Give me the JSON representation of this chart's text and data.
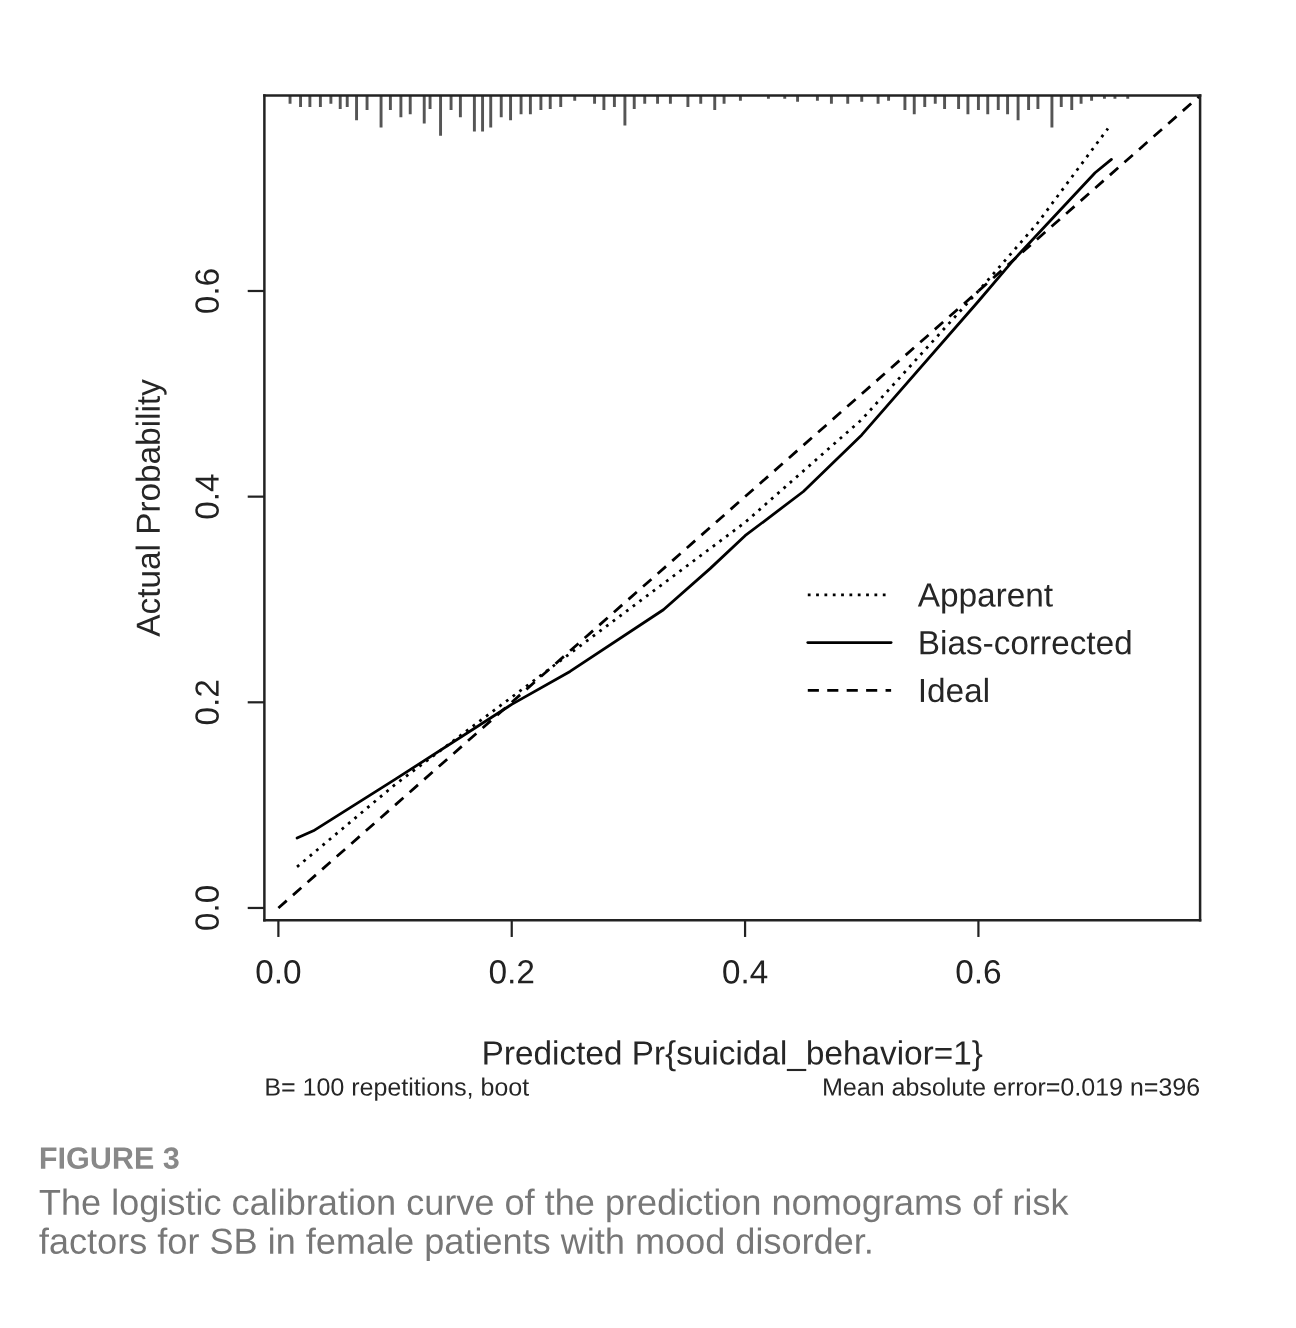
{
  "chart_data": {
    "type": "line",
    "xlabel": "Predicted Pr{suicidal_behavior=1}",
    "ylabel": "Actual Probability",
    "xlim": [
      -0.012,
      0.79
    ],
    "ylim": [
      -0.012,
      0.79
    ],
    "xticks": [
      {
        "value": 0,
        "label": "0.0"
      },
      0.2,
      0.4,
      0.6
    ],
    "yticks": [
      {
        "value": 0,
        "label": "0.0"
      },
      0.2,
      0.4,
      0.6
    ],
    "grid": false,
    "legend": "lower right",
    "series": [
      {
        "name": "Apparent",
        "type": "line",
        "line_style": "dotted",
        "color": "#000000",
        "x": [
          0.016,
          0.1,
          0.2,
          0.3,
          0.4,
          0.5,
          0.6,
          0.65,
          0.711
        ],
        "values": [
          0.04,
          0.12,
          0.205,
          0.29,
          0.375,
          0.475,
          0.6,
          0.665,
          0.758
        ]
      },
      {
        "name": "Bias-corrected",
        "type": "line",
        "line_style": "solid",
        "color": "#000000",
        "x": [
          0.016,
          0.03,
          0.1,
          0.2,
          0.25,
          0.33,
          0.37,
          0.4,
          0.45,
          0.5,
          0.6,
          0.63,
          0.7,
          0.714
        ],
        "values": [
          0.068,
          0.075,
          0.125,
          0.198,
          0.23,
          0.29,
          0.33,
          0.362,
          0.405,
          0.46,
          0.59,
          0.63,
          0.715,
          0.728
        ]
      },
      {
        "name": "Ideal",
        "line_style": "dashed",
        "color": "#000000",
        "x": [
          0,
          0.79
        ],
        "values": [
          0,
          0.79
        ]
      },
      {
        "type": "bar",
        "color": "#555555",
        "x": [
          0.01,
          0.019,
          0.027,
          0.036,
          0.045,
          0.053,
          0.059,
          0.067,
          0.076,
          0.088,
          0.096,
          0.105,
          0.113,
          0.125,
          0.13,
          0.139,
          0.148,
          0.156,
          0.168,
          0.175,
          0.182,
          0.191,
          0.199,
          0.208,
          0.216,
          0.225,
          0.233,
          0.242,
          0.254,
          0.271,
          0.279,
          0.288,
          0.297,
          0.305,
          0.314,
          0.325,
          0.336,
          0.351,
          0.362,
          0.374,
          0.382,
          0.396,
          0.42,
          0.434,
          0.445,
          0.462,
          0.474,
          0.488,
          0.5,
          0.514,
          0.523,
          0.537,
          0.545,
          0.554,
          0.563,
          0.571,
          0.583,
          0.591,
          0.6,
          0.608,
          0.617,
          0.625,
          0.634,
          0.643,
          0.651,
          0.663,
          0.671,
          0.68,
          0.688,
          0.697,
          0.708,
          0.717,
          0.728
        ],
        "values": [
          -0.008,
          -0.011,
          -0.011,
          -0.011,
          -0.008,
          -0.013,
          -0.011,
          -0.024,
          -0.014,
          -0.031,
          -0.014,
          -0.021,
          -0.018,
          -0.027,
          -0.013,
          -0.039,
          -0.014,
          -0.021,
          -0.035,
          -0.035,
          -0.031,
          -0.021,
          -0.024,
          -0.018,
          -0.018,
          -0.014,
          -0.013,
          -0.011,
          -0.005,
          -0.008,
          -0.014,
          -0.011,
          -0.029,
          -0.013,
          -0.008,
          -0.008,
          -0.008,
          -0.011,
          -0.008,
          -0.014,
          -0.008,
          -0.005,
          -0.003,
          -0.003,
          -0.006,
          -0.005,
          -0.008,
          -0.008,
          -0.006,
          -0.008,
          -0.005,
          -0.014,
          -0.018,
          -0.011,
          -0.008,
          -0.013,
          -0.013,
          -0.018,
          -0.014,
          -0.018,
          -0.014,
          -0.018,
          -0.024,
          -0.014,
          -0.013,
          -0.031,
          -0.011,
          -0.014,
          -0.008,
          -0.005,
          -0.003,
          -0.003,
          -0.003
        ],
        "base": [
          0.79,
          0.79,
          0.79,
          0.79,
          0.79,
          0.79,
          0.79,
          0.79,
          0.79,
          0.79,
          0.79,
          0.79,
          0.79,
          0.79,
          0.79,
          0.79,
          0.79,
          0.79,
          0.79,
          0.79,
          0.79,
          0.79,
          0.79,
          0.79,
          0.79,
          0.79,
          0.79,
          0.79,
          0.79,
          0.79,
          0.79,
          0.79,
          0.79,
          0.79,
          0.79,
          0.79,
          0.79,
          0.79,
          0.79,
          0.79,
          0.79,
          0.79,
          0.79,
          0.79,
          0.79,
          0.79,
          0.79,
          0.79,
          0.79,
          0.79,
          0.79,
          0.79,
          0.79,
          0.79,
          0.79,
          0.79,
          0.79,
          0.79,
          0.79,
          0.79,
          0.79,
          0.79,
          0.79,
          0.79,
          0.79,
          0.79,
          0.79,
          0.79,
          0.79,
          0.79,
          0.79,
          0.79,
          0.79
        ]
      }
    ],
    "annotations": [
      "B= 100 repetitions, boot",
      "Mean absolute error=0.019 n=396",
      "FIGURE 3",
      "The logistic calibration curve of the prediction nomograms of risk factors for SB in female patients with mood disorder."
    ]
  }
}
